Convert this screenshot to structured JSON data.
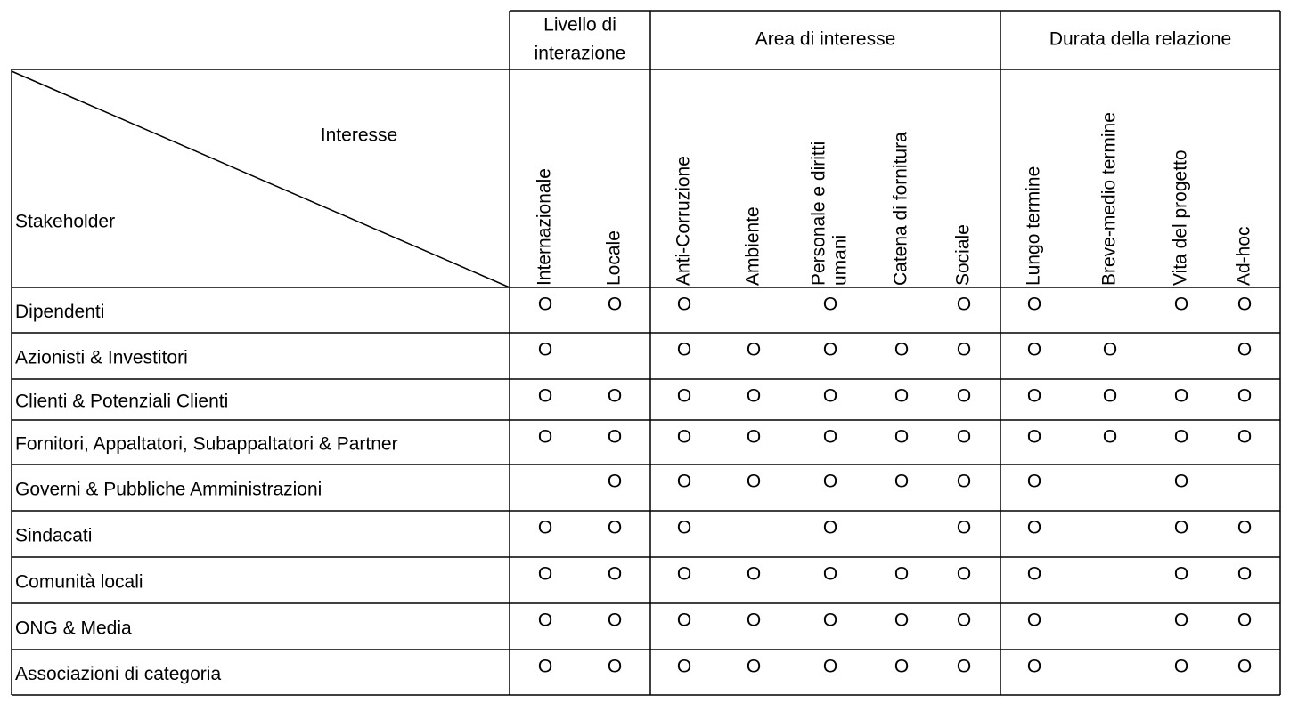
{
  "table": {
    "corner": {
      "top": "Interesse",
      "bottom": "Stakeholder"
    },
    "groups": [
      {
        "label": [
          "Livello di",
          "interazione"
        ],
        "columns": [
          {
            "label": [
              "Internazionale"
            ]
          },
          {
            "label": [
              "Locale"
            ]
          }
        ]
      },
      {
        "label": [
          "Area di interesse"
        ],
        "columns": [
          {
            "label": [
              "Anti-Corruzione"
            ]
          },
          {
            "label": [
              "Ambiente"
            ]
          },
          {
            "label": [
              "Personale e diritti",
              "umani"
            ]
          },
          {
            "label": [
              "Catena di fornitura"
            ]
          },
          {
            "label": [
              "Sociale"
            ]
          }
        ]
      },
      {
        "label": [
          "Durata della relazione"
        ],
        "columns": [
          {
            "label": [
              "Lungo termine"
            ]
          },
          {
            "label": [
              "Breve-medio termine"
            ]
          },
          {
            "label": [
              "Vita del progetto"
            ]
          },
          {
            "label": [
              "Ad-hoc"
            ]
          }
        ]
      }
    ],
    "rows": [
      {
        "label": "Dipendenti",
        "cells": [
          "O",
          "O",
          "O",
          null,
          "O",
          null,
          "O",
          "O",
          null,
          "O",
          "O"
        ]
      },
      {
        "label": "Azionisti & Investitori",
        "cells": [
          "O",
          null,
          "O",
          "O",
          "O",
          "O",
          "O",
          "O",
          "O",
          null,
          "O"
        ]
      },
      {
        "label": "Clienti & Potenziali Clienti",
        "cells": [
          "O",
          "O",
          "O",
          "O",
          "O",
          "O",
          "O",
          "O",
          "O",
          "O",
          "O"
        ]
      },
      {
        "label": "Fornitori, Appaltatori, Subappaltatori & Partner",
        "cells": [
          "O",
          "O",
          "O",
          "O",
          "O",
          "O",
          "O",
          "O",
          "O",
          "O",
          "O"
        ]
      },
      {
        "label": "Governi & Pubbliche Amministrazioni",
        "cells": [
          null,
          "O",
          "O",
          "O",
          "O",
          "O",
          "O",
          "O",
          null,
          "O",
          null
        ]
      },
      {
        "label": "Sindacati",
        "cells": [
          "O",
          "O",
          "O",
          null,
          "O",
          null,
          "O",
          "O",
          null,
          "O",
          "O"
        ]
      },
      {
        "label": "Comunità locali",
        "cells": [
          "O",
          "O",
          "O",
          "O",
          "O",
          "O",
          "O",
          "O",
          null,
          "O",
          "O"
        ]
      },
      {
        "label": "ONG & Media",
        "cells": [
          "O",
          "O",
          "O",
          "O",
          "O",
          "O",
          "O",
          "O",
          null,
          "O",
          "O"
        ]
      },
      {
        "label": "Associazioni di categoria",
        "cells": [
          "O",
          "O",
          "O",
          "O",
          "O",
          "O",
          "O",
          "O",
          null,
          "O",
          "O"
        ]
      }
    ]
  }
}
